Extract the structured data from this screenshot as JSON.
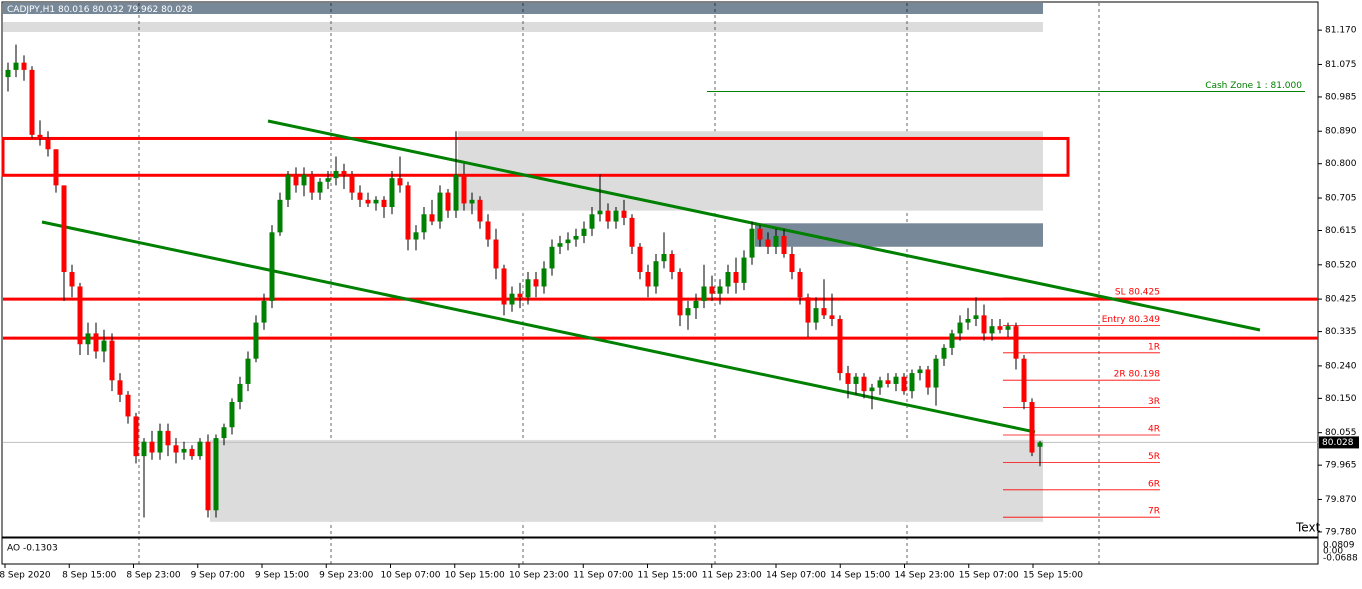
{
  "chart_data": {
    "type": "candlestick",
    "title": "CADJPY,H1",
    "ohlc": [
      [
        81.04,
        81.08,
        81.0,
        81.06
      ],
      [
        81.06,
        81.13,
        81.04,
        81.08
      ],
      [
        81.08,
        81.1,
        81.03,
        81.06
      ],
      [
        81.06,
        81.07,
        80.87,
        80.88
      ],
      [
        80.88,
        80.92,
        80.85,
        80.87
      ],
      [
        80.87,
        80.89,
        80.82,
        80.84
      ],
      [
        80.84,
        80.84,
        80.72,
        80.74
      ],
      [
        80.74,
        80.74,
        80.42,
        80.5
      ],
      [
        80.5,
        80.52,
        80.43,
        80.46
      ],
      [
        80.46,
        80.47,
        80.27,
        80.3
      ],
      [
        80.3,
        80.36,
        80.27,
        80.33
      ],
      [
        80.33,
        80.36,
        80.26,
        80.28
      ],
      [
        80.28,
        80.34,
        80.25,
        80.31
      ],
      [
        80.31,
        80.33,
        80.17,
        80.2
      ],
      [
        80.2,
        80.22,
        80.14,
        80.16
      ],
      [
        80.16,
        80.17,
        80.08,
        80.1
      ],
      [
        80.1,
        80.11,
        79.97,
        79.99
      ],
      [
        79.99,
        80.04,
        79.82,
        80.03
      ],
      [
        80.03,
        80.06,
        79.98,
        80.0
      ],
      [
        80.0,
        80.08,
        79.98,
        80.06
      ],
      [
        80.06,
        80.08,
        79.99,
        80.02
      ],
      [
        80.02,
        80.04,
        79.97,
        80.0
      ],
      [
        80.0,
        80.03,
        79.98,
        80.01
      ],
      [
        80.01,
        80.02,
        79.98,
        79.99
      ],
      [
        79.99,
        80.04,
        79.98,
        80.03
      ],
      [
        80.03,
        80.05,
        79.82,
        79.84
      ],
      [
        79.84,
        80.05,
        79.82,
        80.04
      ],
      [
        80.04,
        80.08,
        80.02,
        80.07
      ],
      [
        80.07,
        80.15,
        80.05,
        80.14
      ],
      [
        80.14,
        80.21,
        80.12,
        80.19
      ],
      [
        80.19,
        80.28,
        80.17,
        80.26
      ],
      [
        80.26,
        80.38,
        80.25,
        80.36
      ],
      [
        80.36,
        80.44,
        80.34,
        80.42
      ],
      [
        80.42,
        80.63,
        80.4,
        80.61
      ],
      [
        80.61,
        80.72,
        80.6,
        80.7
      ],
      [
        80.7,
        80.78,
        80.68,
        80.77
      ],
      [
        80.77,
        80.79,
        80.72,
        80.74
      ],
      [
        80.74,
        80.79,
        80.71,
        80.77
      ],
      [
        80.77,
        80.78,
        80.7,
        80.72
      ],
      [
        80.72,
        80.76,
        80.7,
        80.75
      ],
      [
        80.75,
        80.78,
        80.73,
        80.76
      ],
      [
        80.76,
        80.82,
        80.74,
        80.78
      ],
      [
        80.78,
        80.8,
        80.73,
        80.77
      ],
      [
        80.77,
        80.78,
        80.7,
        80.72
      ],
      [
        80.72,
        80.74,
        80.68,
        80.7
      ],
      [
        80.7,
        80.72,
        80.68,
        80.69
      ],
      [
        80.69,
        80.71,
        80.67,
        80.7
      ],
      [
        80.7,
        80.71,
        80.65,
        80.68
      ],
      [
        80.68,
        80.78,
        80.66,
        80.76
      ],
      [
        80.76,
        80.82,
        80.72,
        80.74
      ],
      [
        80.74,
        80.75,
        80.56,
        80.59
      ],
      [
        80.59,
        80.63,
        80.56,
        80.61
      ],
      [
        80.61,
        80.68,
        80.59,
        80.66
      ],
      [
        80.66,
        80.7,
        80.63,
        80.64
      ],
      [
        80.64,
        80.74,
        80.62,
        80.72
      ],
      [
        80.72,
        80.73,
        80.65,
        80.67
      ],
      [
        80.67,
        80.89,
        80.65,
        80.77
      ],
      [
        80.77,
        80.8,
        80.67,
        80.69
      ],
      [
        80.69,
        80.72,
        80.66,
        80.7
      ],
      [
        80.7,
        80.71,
        80.62,
        80.64
      ],
      [
        80.64,
        80.66,
        80.57,
        80.59
      ],
      [
        80.59,
        80.62,
        80.48,
        80.51
      ],
      [
        80.51,
        80.52,
        80.38,
        80.41
      ],
      [
        80.41,
        80.46,
        80.39,
        80.44
      ],
      [
        80.44,
        80.47,
        80.4,
        80.43
      ],
      [
        80.43,
        80.5,
        80.41,
        80.48
      ],
      [
        80.48,
        80.5,
        80.43,
        80.46
      ],
      [
        80.46,
        80.53,
        80.44,
        80.51
      ],
      [
        80.51,
        80.59,
        80.49,
        80.57
      ],
      [
        80.57,
        80.6,
        80.55,
        80.58
      ],
      [
        80.58,
        80.61,
        80.56,
        80.59
      ],
      [
        80.59,
        80.62,
        80.57,
        80.6
      ],
      [
        80.6,
        80.64,
        80.58,
        80.62
      ],
      [
        80.62,
        80.68,
        80.6,
        80.66
      ],
      [
        80.66,
        80.77,
        80.64,
        80.67
      ],
      [
        80.67,
        80.69,
        80.62,
        80.64
      ],
      [
        80.64,
        80.68,
        80.62,
        80.67
      ],
      [
        80.67,
        80.7,
        80.63,
        80.65
      ],
      [
        80.65,
        80.66,
        80.55,
        80.57
      ],
      [
        80.57,
        80.58,
        80.48,
        80.5
      ],
      [
        80.5,
        80.52,
        80.43,
        80.46
      ],
      [
        80.46,
        80.55,
        80.44,
        80.53
      ],
      [
        80.53,
        80.61,
        80.51,
        80.55
      ],
      [
        80.55,
        80.56,
        80.48,
        80.5
      ],
      [
        80.5,
        80.51,
        80.35,
        80.38
      ],
      [
        80.38,
        80.42,
        80.34,
        80.4
      ],
      [
        80.4,
        80.44,
        80.37,
        80.42
      ],
      [
        80.42,
        80.52,
        80.4,
        80.46
      ],
      [
        80.46,
        80.49,
        80.42,
        80.44
      ],
      [
        80.44,
        80.48,
        80.41,
        80.46
      ],
      [
        80.46,
        80.52,
        80.44,
        80.5
      ],
      [
        80.5,
        80.54,
        80.44,
        80.47
      ],
      [
        80.47,
        80.56,
        80.45,
        80.54
      ],
      [
        80.54,
        80.64,
        80.52,
        80.62
      ],
      [
        80.62,
        80.63,
        80.57,
        80.59
      ],
      [
        80.59,
        80.61,
        80.55,
        80.57
      ],
      [
        80.57,
        80.62,
        80.55,
        80.6
      ],
      [
        80.6,
        80.62,
        80.54,
        80.55
      ],
      [
        80.55,
        80.57,
        80.48,
        80.5
      ],
      [
        80.5,
        80.51,
        80.41,
        80.43
      ],
      [
        80.43,
        80.44,
        80.32,
        80.36
      ],
      [
        80.36,
        80.43,
        80.34,
        80.4
      ],
      [
        80.4,
        80.48,
        80.37,
        80.38
      ],
      [
        80.38,
        80.44,
        80.35,
        80.37
      ],
      [
        80.37,
        80.38,
        80.2,
        80.22
      ],
      [
        80.22,
        80.24,
        80.15,
        80.19
      ],
      [
        80.19,
        80.22,
        80.16,
        80.21
      ],
      [
        80.21,
        80.22,
        80.15,
        80.17
      ],
      [
        80.17,
        80.19,
        80.12,
        80.18
      ],
      [
        80.18,
        80.21,
        80.16,
        80.2
      ],
      [
        80.2,
        80.22,
        80.18,
        80.19
      ],
      [
        80.19,
        80.22,
        80.17,
        80.21
      ],
      [
        80.21,
        80.22,
        80.16,
        80.17
      ],
      [
        80.17,
        80.23,
        80.15,
        80.22
      ],
      [
        80.22,
        80.24,
        80.2,
        80.23
      ],
      [
        80.23,
        80.24,
        80.16,
        80.18
      ],
      [
        80.18,
        80.27,
        80.13,
        80.26
      ],
      [
        80.26,
        80.3,
        80.24,
        80.29
      ],
      [
        80.29,
        80.34,
        80.27,
        80.33
      ],
      [
        80.33,
        80.38,
        80.31,
        80.36
      ],
      [
        80.36,
        80.4,
        80.34,
        80.37
      ],
      [
        80.37,
        80.43,
        80.35,
        80.38
      ],
      [
        80.38,
        80.41,
        80.31,
        80.33
      ],
      [
        80.33,
        80.37,
        80.31,
        80.35
      ],
      [
        80.35,
        80.37,
        80.33,
        80.34
      ],
      [
        80.34,
        80.36,
        80.32,
        80.35
      ],
      [
        80.35,
        80.36,
        80.23,
        80.26
      ],
      [
        80.26,
        80.27,
        80.12,
        80.14
      ],
      [
        80.14,
        80.15,
        79.99,
        80.0
      ],
      [
        80.016,
        80.032,
        79.962,
        80.028
      ]
    ],
    "up_color": "#008000",
    "down_color": "#ff0000",
    "ylim": [
      79.766,
      81.248
    ],
    "yticks": [
      {
        "value": 81.17,
        "label": "81.170"
      },
      {
        "value": 81.075,
        "label": "81.075"
      },
      {
        "value": 80.985,
        "label": "80.985"
      },
      {
        "value": 80.89,
        "label": "80.890"
      },
      {
        "value": 80.8,
        "label": "80.800"
      },
      {
        "value": 80.705,
        "label": "80.705"
      },
      {
        "value": 80.615,
        "label": "80.615"
      },
      {
        "value": 80.52,
        "label": "80.520"
      },
      {
        "value": 80.425,
        "label": "80.425"
      },
      {
        "value": 80.335,
        "label": "80.335"
      },
      {
        "value": 80.24,
        "label": "80.240"
      },
      {
        "value": 80.15,
        "label": "80.150"
      },
      {
        "value": 80.055,
        "label": "80.055"
      },
      {
        "value": 79.965,
        "label": "79.965"
      },
      {
        "value": 79.87,
        "label": "79.870"
      },
      {
        "value": 79.78,
        "label": "79.780"
      }
    ],
    "x_labels": [
      "8 Sep 2020",
      "8 Sep 15:00",
      "8 Sep 23:00",
      "9 Sep 07:00",
      "9 Sep 15:00",
      "9 Sep 23:00",
      "10 Sep 07:00",
      "10 Sep 15:00",
      "10 Sep 23:00",
      "11 Sep 07:00",
      "11 Sep 15:00",
      "11 Sep 23:00",
      "14 Sep 07:00",
      "14 Sep 15:00",
      "14 Sep 23:00",
      "15 Sep 07:00",
      "15 Sep 15:00"
    ],
    "zones": [
      {
        "high": 80.89,
        "low": 80.67,
        "color": "#dcdcdc"
      },
      {
        "high": 80.635,
        "low": 80.57,
        "color": "#778899"
      },
      {
        "high": 80.035,
        "low": 79.808,
        "color": "#dcdcdc"
      }
    ],
    "levels": [
      80.425,
      80.317
    ],
    "box": {
      "high": 80.87,
      "low": 80.768
    },
    "cash_zone": {
      "label": "Cash Zone 1 : 81.000",
      "value": 81.0
    },
    "trade_levels": [
      "SL 80.425",
      "Entry 80.349",
      "1R",
      "2R 80.198",
      "3R",
      "4R",
      "5R",
      "6R",
      "7R"
    ],
    "text_label": "Text",
    "ao": {
      "label": "AO -0.1303",
      "ticks": [
        "0.0809",
        "0.00",
        "-0.0688"
      ]
    }
  }
}
